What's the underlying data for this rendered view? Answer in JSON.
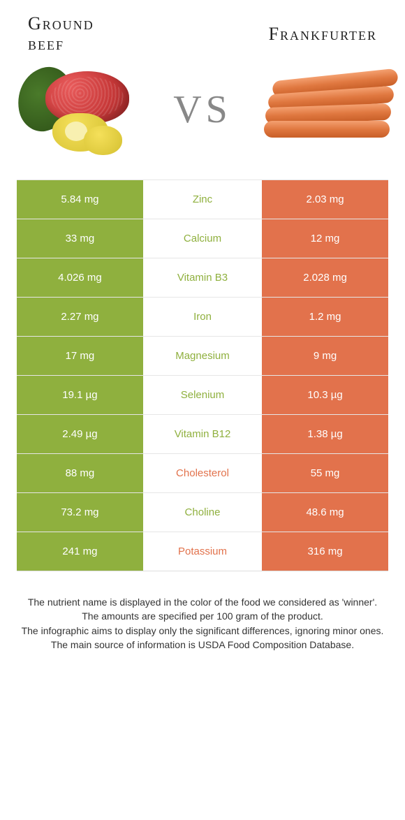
{
  "colors": {
    "left": "#8fb03e",
    "right": "#e2724c",
    "left_text": "#8fb03e",
    "right_text": "#e2724c"
  },
  "header": {
    "left_name_line1": "Ground",
    "left_name_line2": "beef",
    "right_name": "Frankfurter",
    "vs": "VS"
  },
  "rows": [
    {
      "label": "Zinc",
      "left": "5.84 mg",
      "right": "2.03 mg",
      "winner": "left"
    },
    {
      "label": "Calcium",
      "left": "33 mg",
      "right": "12 mg",
      "winner": "left"
    },
    {
      "label": "Vitamin B3",
      "left": "4.026 mg",
      "right": "2.028 mg",
      "winner": "left"
    },
    {
      "label": "Iron",
      "left": "2.27 mg",
      "right": "1.2 mg",
      "winner": "left"
    },
    {
      "label": "Magnesium",
      "left": "17 mg",
      "right": "9 mg",
      "winner": "left"
    },
    {
      "label": "Selenium",
      "left": "19.1 µg",
      "right": "10.3 µg",
      "winner": "left"
    },
    {
      "label": "Vitamin B12",
      "left": "2.49 µg",
      "right": "1.38 µg",
      "winner": "left"
    },
    {
      "label": "Cholesterol",
      "left": "88 mg",
      "right": "55 mg",
      "winner": "right"
    },
    {
      "label": "Choline",
      "left": "73.2 mg",
      "right": "48.6 mg",
      "winner": "left"
    },
    {
      "label": "Potassium",
      "left": "241 mg",
      "right": "316 mg",
      "winner": "right"
    }
  ],
  "footnotes": [
    "The nutrient name is displayed in the color of the food we considered as 'winner'.",
    "The amounts are specified per 100 gram of the product.",
    "The infographic aims to display only the significant differences, ignoring minor ones.",
    "The main source of information is USDA Food Composition Database."
  ]
}
